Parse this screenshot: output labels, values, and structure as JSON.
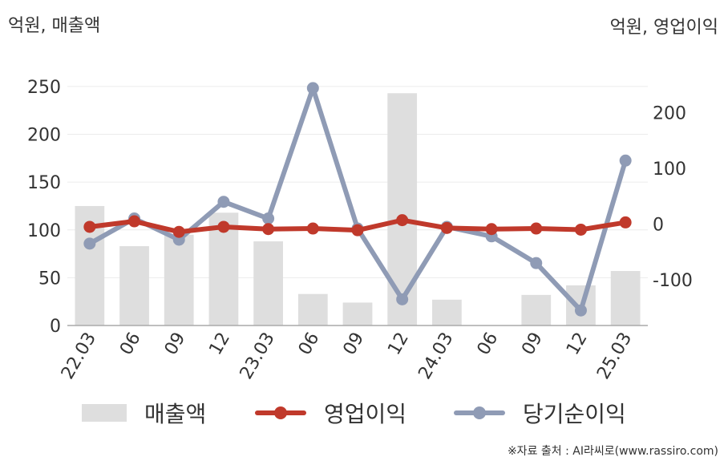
{
  "units": {
    "left": "억원, 매출액",
    "right": "억원, 영업이익"
  },
  "source": "※자료 출처 : AI라씨로(www.rassiro.com)",
  "colors": {
    "revenue": "#dedede",
    "operating_profit": "#c0392b",
    "net_income": "#8f9bb5",
    "axis": "#aaaaaa",
    "grid": "#ececec"
  },
  "legend": [
    {
      "label": "매출액",
      "kind": "bar",
      "color": "#dedede"
    },
    {
      "label": "영업이익",
      "kind": "line",
      "color": "#c0392b"
    },
    {
      "label": "당기순이익",
      "kind": "line",
      "color": "#8f9bb5"
    }
  ],
  "chart_data": {
    "type": "bar",
    "categories": [
      "22.03",
      "06",
      "09",
      "12",
      "23.03",
      "06",
      "09",
      "12",
      "24.03",
      "06",
      "09",
      "12",
      "25.03"
    ],
    "y_left": {
      "ticks": [
        0,
        50,
        100,
        150,
        200,
        250
      ],
      "range": [
        0,
        260
      ]
    },
    "y_right": {
      "ticks": [
        -100,
        0,
        100,
        200
      ],
      "range": [
        -182,
        264
      ]
    },
    "series": [
      {
        "name": "매출액",
        "type": "bar",
        "axis": "left",
        "values": [
          125,
          83,
          95,
          118,
          88,
          33,
          24,
          243,
          27,
          0,
          32,
          42,
          57
        ]
      },
      {
        "name": "영업이익",
        "type": "line",
        "axis": "right",
        "values": [
          -5,
          5,
          -14,
          -5,
          -9,
          -8,
          -11,
          7,
          -7,
          -9,
          -8,
          -10,
          3
        ]
      },
      {
        "name": "당기순이익",
        "type": "line",
        "axis": "right",
        "values": [
          -35,
          10,
          -28,
          40,
          10,
          244,
          -8,
          -135,
          -5,
          -22,
          -70,
          -155,
          114
        ]
      }
    ],
    "grid": true,
    "legend_position": "bottom"
  }
}
